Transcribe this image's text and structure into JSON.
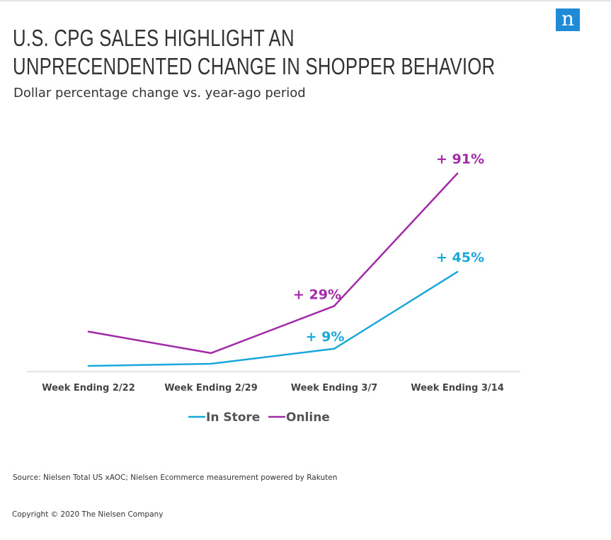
{
  "brand": {
    "logo_letter": "n",
    "logo_color": "#1f8ad6"
  },
  "header": {
    "title_line1": "U.S. CPG SALES HIGHLIGHT AN",
    "title_line2": "UNPRECENDENTED CHANGE IN SHOPPER BEHAVIOR",
    "subtitle": "Dollar percentage change vs. year-ago period"
  },
  "chart_data": {
    "type": "line",
    "title": "U.S. CPG SALES HIGHLIGHT AN UNPRECENDENTED CHANGE IN SHOPPER BEHAVIOR",
    "subtitle": "Dollar percentage change vs. year-ago period",
    "xlabel": "",
    "ylabel": "",
    "categories": [
      "Week Ending 2/22",
      "Week Ending 2/29",
      "Week Ending 3/7",
      "Week Ending 3/14"
    ],
    "ylim": [
      0,
      96
    ],
    "grid": false,
    "legend_position": "bottom",
    "series": [
      {
        "name": "In Store",
        "color": "#1aa8dc",
        "values": [
          1,
          2,
          9,
          45
        ],
        "labels": [
          "",
          "",
          "+ 9%",
          "+ 45%"
        ]
      },
      {
        "name": "Online",
        "color": "#a12aa8",
        "values": [
          17,
          7,
          29,
          91
        ],
        "labels": [
          "",
          "",
          "+ 29%",
          "+ 91%"
        ]
      }
    ]
  },
  "footer": {
    "source": "Source: Nielsen Total US xAOC; Nielsen Ecommerce measurement powered by Rakuten",
    "copyright": "Copyright © 2020 The Nielsen Company"
  }
}
